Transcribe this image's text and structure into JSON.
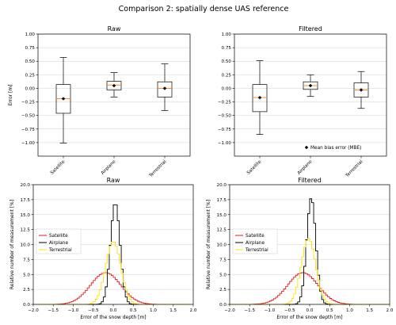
{
  "figure": {
    "title": "Comparison 2: spatially dense UAS reference"
  },
  "chart_data": [
    {
      "type": "box",
      "title": "Raw",
      "ylabel": "Error [m]",
      "xlabel": "",
      "ylim": [
        -1.25,
        1.0
      ],
      "yticks": [
        -1.0,
        -0.75,
        -0.5,
        -0.25,
        0.0,
        0.25,
        0.5,
        0.75,
        1.0
      ],
      "ytick_labels": [
        "−1.00",
        "−0.75",
        "−0.50",
        "−0.25",
        "0.00",
        "0.25",
        "0.50",
        "0.75",
        "1.00"
      ],
      "grid": true,
      "categories": [
        "Satellite",
        "Airplane",
        "Terrestrial"
      ],
      "boxes": [
        {
          "whisker_low": -1.01,
          "q1": -0.46,
          "median": -0.19,
          "q3": 0.07,
          "whisker_high": 0.57,
          "mean": -0.19
        },
        {
          "whisker_low": -0.16,
          "q1": -0.03,
          "median": 0.06,
          "q3": 0.13,
          "whisker_high": 0.29,
          "mean": 0.05
        },
        {
          "whisker_low": -0.41,
          "q1": -0.16,
          "median": 0.0,
          "q3": 0.12,
          "whisker_high": 0.45,
          "mean": 0.0
        }
      ],
      "legend": []
    },
    {
      "type": "box",
      "title": "Filtered",
      "ylabel": "",
      "xlabel": "",
      "ylim": [
        -1.25,
        1.0
      ],
      "yticks": [
        -1.0,
        -0.75,
        -0.5,
        -0.25,
        0.0,
        0.25,
        0.5,
        0.75,
        1.0
      ],
      "ytick_labels": [
        "−1.00",
        "−0.75",
        "−0.50",
        "−0.25",
        "0.00",
        "0.25",
        "0.50",
        "0.75",
        "1.00"
      ],
      "grid": true,
      "categories": [
        "Satellite",
        "Airplane",
        "Terrestrial"
      ],
      "boxes": [
        {
          "whisker_low": -0.85,
          "q1": -0.43,
          "median": -0.17,
          "q3": 0.07,
          "whisker_high": 0.51,
          "mean": -0.17
        },
        {
          "whisker_low": -0.15,
          "q1": -0.02,
          "median": 0.05,
          "q3": 0.12,
          "whisker_high": 0.25,
          "mean": 0.05
        },
        {
          "whisker_low": -0.37,
          "q1": -0.16,
          "median": -0.03,
          "q3": 0.1,
          "whisker_high": 0.31,
          "mean": -0.03
        }
      ],
      "legend": [
        "Mean bias error (MBE)"
      ],
      "legend_position": "lower-right"
    },
    {
      "type": "histogram",
      "title": "Raw",
      "xlabel": "Error of the snow depth [m]",
      "ylabel": "Relative number of measurement [%]",
      "xlim": [
        -2.0,
        2.0
      ],
      "ylim": [
        0,
        20
      ],
      "xticks": [
        -2.0,
        -1.5,
        -1.0,
        -0.5,
        0.0,
        0.5,
        1.0,
        1.5,
        2.0
      ],
      "xtick_labels": [
        "−2.0",
        "−1.5",
        "−1.0",
        "−0.5",
        "0.0",
        "0.5",
        "1.0",
        "1.5",
        "2.0"
      ],
      "yticks": [
        0,
        2.5,
        5,
        7.5,
        10,
        12.5,
        15,
        17.5,
        20
      ],
      "ytick_labels": [
        "0.0",
        "2.5",
        "5.0",
        "7.5",
        "10.0",
        "12.5",
        "15.0",
        "17.5",
        "20.0"
      ],
      "grid": true,
      "legend_position": "center-left",
      "bin_width": 0.05,
      "series": [
        {
          "name": "Satellite",
          "color": "#e31a1c",
          "center": -0.19,
          "sigma": 0.38,
          "peak": 5.3
        },
        {
          "name": "Airplane",
          "color": "#000000",
          "center": 0.05,
          "sigma": 0.12,
          "peak": 17.0
        },
        {
          "name": "Terrestrial",
          "color": "#ffe100",
          "center": 0.0,
          "sigma": 0.19,
          "peak": 10.5
        }
      ]
    },
    {
      "type": "histogram",
      "title": "Filtered",
      "xlabel": "Error of the snow depth [m]",
      "ylabel": "Relative number of measurement [%]",
      "xlim": [
        -2.0,
        2.0
      ],
      "ylim": [
        0,
        20
      ],
      "xticks": [
        -2.0,
        -1.5,
        -1.0,
        -0.5,
        0.0,
        0.5,
        1.0,
        1.5,
        2.0
      ],
      "xtick_labels": [
        "−2.0",
        "−1.5",
        "−1.0",
        "−0.5",
        "0.0",
        "0.5",
        "1.0",
        "1.5",
        "2.0"
      ],
      "yticks": [
        0,
        2.5,
        5,
        7.5,
        10,
        12.5,
        15,
        17.5,
        20
      ],
      "ytick_labels": [
        "0.0",
        "2.5",
        "5.0",
        "7.5",
        "10.0",
        "12.5",
        "15.0",
        "17.5",
        "20.0"
      ],
      "grid": true,
      "legend_position": "center-left",
      "bin_width": 0.05,
      "series": [
        {
          "name": "Satellite",
          "color": "#e31a1c",
          "center": -0.17,
          "sigma": 0.38,
          "peak": 5.3
        },
        {
          "name": "Airplane",
          "color": "#000000",
          "center": 0.04,
          "sigma": 0.115,
          "peak": 17.8
        },
        {
          "name": "Terrestrial",
          "color": "#ffe100",
          "center": -0.03,
          "sigma": 0.18,
          "peak": 11.0
        }
      ]
    }
  ],
  "colors": {
    "box": "#000000",
    "median": "#ff7f0e",
    "mean_marker": "#000000",
    "grid": "#d0d0d0"
  }
}
